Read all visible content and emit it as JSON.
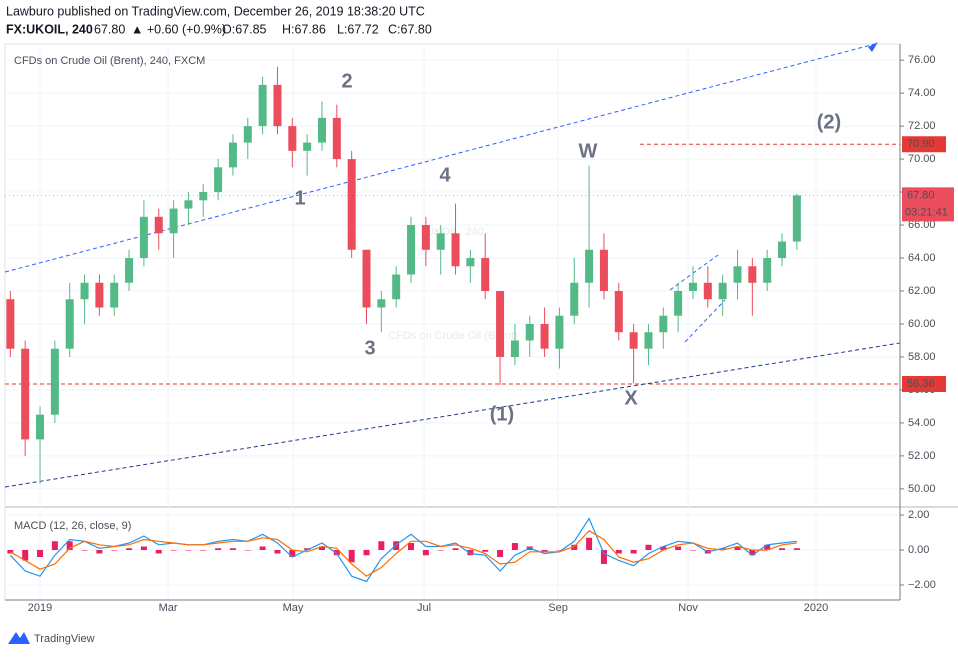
{
  "header": {
    "publisher": "Lawburo published on TradingView.com, December 26, 2019 18:38:20 UTC",
    "symbol": "FX:UKOIL, 240",
    "price": "67.80",
    "change": "▲ +0.60 (+0.9%)",
    "open": "O:67.85",
    "high": "H:67.86",
    "low": "L:67.72",
    "close": "C:67.80"
  },
  "footer": {
    "brand": "TradingView"
  },
  "chart_data": {
    "type": "candlestick",
    "title": "CFDs on Crude Oil (Brent), 240, FXCM",
    "watermark": [
      "UKOIL, 240",
      "CFDs on Crude Oil (Brent)"
    ],
    "up_color": "#53b987",
    "down_color": "#eb4d5c",
    "grid": true,
    "xlim": [
      -0.36,
      59.95
    ],
    "ylim": [
      48.9,
      76.98
    ],
    "xticks": [
      {
        "value": 2,
        "label": "2019"
      },
      {
        "value": 10.63,
        "label": "Mar"
      },
      {
        "value": 19.05,
        "label": "May"
      },
      {
        "value": 27.88,
        "label": "Jul"
      },
      {
        "value": 36.91,
        "label": "Sep"
      },
      {
        "value": 45.67,
        "label": "Nov"
      },
      {
        "value": 54.29,
        "label": "2020"
      }
    ],
    "yticks": [
      {
        "value": 50,
        "label": "50.00"
      },
      {
        "value": 52,
        "label": "52.00"
      },
      {
        "value": 54,
        "label": "54.00"
      },
      {
        "value": 56,
        "label": "56.00"
      },
      {
        "value": 58,
        "label": "58.00"
      },
      {
        "value": 60,
        "label": "60.00"
      },
      {
        "value": 62,
        "label": "62.00"
      },
      {
        "value": 64,
        "label": "64.00"
      },
      {
        "value": 66,
        "label": "66.00"
      },
      {
        "value": 68,
        "label": "68.00"
      },
      {
        "value": 70,
        "label": "70.00"
      },
      {
        "value": 72,
        "label": "72.00"
      },
      {
        "value": 74,
        "label": "74.00"
      },
      {
        "value": 76,
        "label": "76.00"
      }
    ],
    "ohlc": [
      [
        61.5,
        62,
        58,
        58.5
      ],
      [
        58.5,
        59,
        52,
        53
      ],
      [
        53,
        55,
        50.3,
        54.5
      ],
      [
        54.5,
        59,
        54,
        58.5
      ],
      [
        58.5,
        62.5,
        58,
        61.5
      ],
      [
        61.5,
        63,
        60,
        62.5
      ],
      [
        62.5,
        63,
        60.5,
        61
      ],
      [
        61,
        63,
        60.5,
        62.5
      ],
      [
        62.5,
        64.5,
        62,
        64
      ],
      [
        64,
        67.5,
        63.5,
        66.5
      ],
      [
        66.5,
        67,
        64.5,
        65.5
      ],
      [
        65.5,
        67.5,
        64,
        67
      ],
      [
        67,
        68,
        66,
        67.5
      ],
      [
        67.5,
        68.5,
        66.5,
        68
      ],
      [
        68,
        70,
        67.5,
        69.5
      ],
      [
        69.5,
        71.5,
        69,
        71
      ],
      [
        71,
        72.5,
        70,
        72
      ],
      [
        72,
        75,
        71.5,
        74.5
      ],
      [
        74.5,
        75.6,
        71.5,
        72
      ],
      [
        72,
        72.5,
        69.5,
        70.5
      ],
      [
        70.5,
        71.5,
        69,
        71
      ],
      [
        71,
        73.5,
        70.5,
        72.5
      ],
      [
        72.5,
        73.3,
        69.5,
        70
      ],
      [
        70,
        70.5,
        64,
        64.5
      ],
      [
        64.5,
        64.5,
        60,
        61
      ],
      [
        61,
        62,
        59.5,
        61.5
      ],
      [
        61.5,
        63.5,
        61,
        63
      ],
      [
        63,
        66.5,
        62.5,
        66
      ],
      [
        66,
        66.5,
        63.5,
        64.5
      ],
      [
        64.5,
        66,
        63,
        65.5
      ],
      [
        65.5,
        67.3,
        63,
        63.5
      ],
      [
        63.5,
        64.5,
        62.5,
        64
      ],
      [
        64,
        65.5,
        61.5,
        62
      ],
      [
        62,
        62,
        56.3,
        58
      ],
      [
        58,
        60,
        57.5,
        59
      ],
      [
        59,
        60.5,
        58,
        60
      ],
      [
        60,
        61,
        58,
        58.5
      ],
      [
        58.5,
        61,
        57.3,
        60.5
      ],
      [
        60.5,
        64,
        60,
        62.5
      ],
      [
        62.5,
        69.6,
        61,
        64.5
      ],
      [
        64.5,
        65.5,
        61.5,
        62
      ],
      [
        62,
        62.5,
        59,
        59.5
      ],
      [
        59.5,
        60,
        56.4,
        58.5
      ],
      [
        58.5,
        60,
        57.5,
        59.5
      ],
      [
        59.5,
        61,
        58.5,
        60.5
      ],
      [
        60.5,
        62.5,
        59.5,
        62
      ],
      [
        62,
        63.5,
        61.5,
        62.5
      ],
      [
        62.5,
        63.5,
        61,
        61.5
      ],
      [
        61.5,
        63,
        60.5,
        62.5
      ],
      [
        62.5,
        64.5,
        61.5,
        63.5
      ],
      [
        63.5,
        64,
        60.5,
        62.5
      ],
      [
        62.5,
        64.5,
        62,
        64
      ],
      [
        64,
        65.5,
        63.5,
        65
      ],
      [
        65,
        67.9,
        64.5,
        67.8
      ]
    ],
    "levels": [
      {
        "value": 70.9,
        "label": "70.90",
        "color": "#e53935"
      },
      {
        "value": 56.36,
        "label": "56.36",
        "color": "#e53935"
      }
    ],
    "last_price": {
      "value": 67.8,
      "label": "67.80",
      "countdown": "03:21:41",
      "color": "#eb4d5c"
    },
    "annotations": [
      "1",
      "2",
      "3",
      "4",
      "W",
      "X",
      "(1)",
      "(2)"
    ],
    "macd": {
      "title": "MACD (12, 26, close, 9)",
      "ylim": [
        -2.86,
        2.46
      ],
      "yticks": [
        {
          "value": 2,
          "label": "2.00"
        },
        {
          "value": 0,
          "label": "0.00"
        },
        {
          "value": -2,
          "label": "−2.00"
        }
      ],
      "histogram": {
        "color": "#e91e63",
        "values": [
          -0.2,
          -0.6,
          -0.4,
          0.5,
          0.5,
          0,
          -0.2,
          0,
          0.1,
          0.2,
          -0.2,
          0,
          0,
          0,
          0.1,
          0.1,
          0,
          0.2,
          -0.2,
          -0.4,
          0.1,
          0.2,
          -0.3,
          -0.7,
          -0.3,
          0.5,
          0.5,
          0.4,
          -0.3,
          0,
          0.1,
          -0.3,
          -0.1,
          -0.4,
          0.4,
          0.2,
          -0.1,
          0,
          0.3,
          0.7,
          -0.8,
          -0.2,
          -0.2,
          0.3,
          0.2,
          0.2,
          0,
          -0.2,
          0.1,
          0.2,
          -0.3,
          0.3,
          0.1,
          0.1
        ]
      },
      "series": [
        {
          "color": "#2196f3",
          "values": [
            -0.3,
            -1.2,
            -1.5,
            -0.3,
            0.6,
            0.5,
            0.1,
            0.2,
            0.4,
            0.8,
            0.3,
            0.4,
            0.3,
            0.3,
            0.5,
            0.6,
            0.5,
            0.9,
            0.4,
            -0.4,
            0,
            0.4,
            -0.2,
            -1.5,
            -1.8,
            -0.5,
            0.3,
            0.9,
            0.2,
            0.2,
            0.4,
            -0.2,
            -0.3,
            -1.2,
            -0.3,
            0.1,
            -0.2,
            -0.1,
            0.5,
            1.8,
            -0.2,
            -0.6,
            -0.9,
            -0.2,
            0.2,
            0.5,
            0.4,
            -0.1,
            0.1,
            0.4,
            -0.3,
            0.3,
            0.4,
            0.5
          ]
        },
        {
          "color": "#ff6d00",
          "values": [
            -0.1,
            -0.6,
            -1.1,
            -0.8,
            0.1,
            0.5,
            0.3,
            0.2,
            0.3,
            0.6,
            0.5,
            0.4,
            0.3,
            0.3,
            0.4,
            0.5,
            0.5,
            0.7,
            0.6,
            0,
            -0.1,
            0.2,
            0.1,
            -0.8,
            -1.5,
            -1,
            -0.2,
            0.5,
            0.5,
            0.2,
            0.3,
            0.1,
            -0.2,
            -0.8,
            -0.7,
            -0.1,
            -0.1,
            -0.1,
            0.2,
            1.1,
            0.6,
            -0.4,
            -0.7,
            -0.5,
            0,
            0.3,
            0.4,
            0.1,
            0,
            0.2,
            0,
            0,
            0.3,
            0.4
          ]
        }
      ]
    }
  }
}
